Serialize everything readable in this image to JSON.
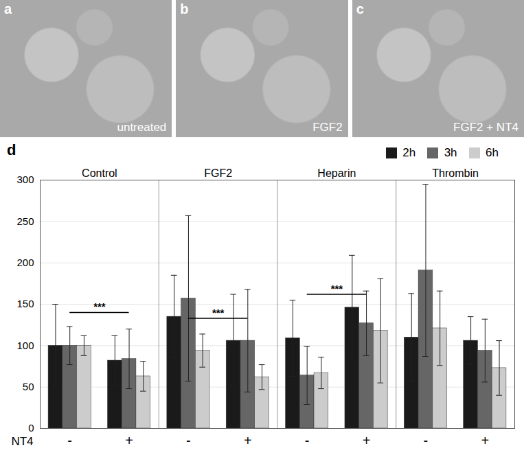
{
  "panels": [
    {
      "letter": "a",
      "label": "untreated"
    },
    {
      "letter": "b",
      "label": "FGF2"
    },
    {
      "letter": "c",
      "label": "FGF2 + NT4"
    }
  ],
  "chart_data": {
    "panel": "d",
    "type": "bar",
    "categories": [
      "Control",
      "FGF2",
      "Heparin",
      "Thrombin"
    ],
    "subcategory_label": "NT4",
    "subcategories": [
      "-",
      "+"
    ],
    "series": [
      {
        "name": "2h",
        "color": "#1a1a1a",
        "values": [
          [
            100,
            82
          ],
          [
            135,
            106
          ],
          [
            109,
            146
          ],
          [
            110,
            106
          ]
        ],
        "errors": [
          [
            50,
            30
          ],
          [
            50,
            56
          ],
          [
            46,
            63
          ],
          [
            53,
            29
          ]
        ]
      },
      {
        "name": "3h",
        "color": "#666666",
        "values": [
          [
            100,
            84
          ],
          [
            157,
            106
          ],
          [
            64,
            127
          ],
          [
            191,
            94
          ]
        ],
        "errors": [
          [
            23,
            36
          ],
          [
            100,
            62
          ],
          [
            35,
            39
          ],
          [
            104,
            38
          ]
        ]
      },
      {
        "name": "6h",
        "color": "#cccccc",
        "values": [
          [
            100,
            63
          ],
          [
            94,
            62
          ],
          [
            67,
            118
          ],
          [
            121,
            73
          ]
        ],
        "errors": [
          [
            12,
            18
          ],
          [
            20,
            15
          ],
          [
            19,
            63
          ],
          [
            45,
            33
          ]
        ]
      }
    ],
    "annotations": [
      {
        "text": "***",
        "category": "Control",
        "y": 140
      },
      {
        "text": "***",
        "category": "FGF2",
        "y": 133
      },
      {
        "text": "***",
        "category": "Heparin",
        "y": 162
      }
    ],
    "ylim": [
      0,
      300
    ],
    "yticks": [
      0,
      50,
      100,
      150,
      200,
      250,
      300
    ],
    "grid": true,
    "legend": "top-right"
  }
}
